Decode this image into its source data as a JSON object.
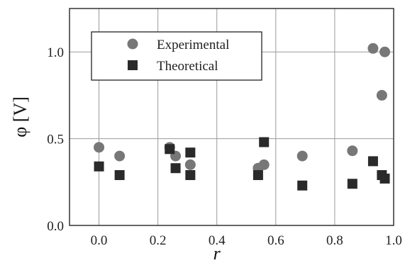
{
  "chart_data": {
    "type": "scatter",
    "xlabel": "r",
    "ylabel": "φ [V]",
    "xlim": [
      -0.1,
      1.0
    ],
    "ylim": [
      0.0,
      1.25
    ],
    "x_ticks": [
      "0.0",
      "0.2",
      "0.4",
      "0.6",
      "0.8",
      "1.0"
    ],
    "y_ticks": [
      "0.0",
      "0.5",
      "1.0"
    ],
    "grid": true,
    "legend_position": "top-left",
    "series": [
      {
        "name": "Experimental",
        "marker": "circle",
        "color": "#777777",
        "points": [
          [
            0.0,
            0.45
          ],
          [
            0.07,
            0.4
          ],
          [
            0.24,
            0.45
          ],
          [
            0.26,
            0.4
          ],
          [
            0.31,
            0.35
          ],
          [
            0.54,
            0.33
          ],
          [
            0.56,
            0.35
          ],
          [
            0.69,
            0.4
          ],
          [
            0.86,
            0.43
          ],
          [
            0.93,
            1.02
          ],
          [
            0.97,
            1.0
          ],
          [
            0.96,
            0.75
          ]
        ]
      },
      {
        "name": "Theoretical",
        "marker": "square",
        "color": "#2a2a2a",
        "points": [
          [
            0.0,
            0.34
          ],
          [
            0.07,
            0.29
          ],
          [
            0.24,
            0.44
          ],
          [
            0.26,
            0.33
          ],
          [
            0.31,
            0.42
          ],
          [
            0.31,
            0.29
          ],
          [
            0.54,
            0.29
          ],
          [
            0.56,
            0.48
          ],
          [
            0.69,
            0.23
          ],
          [
            0.86,
            0.24
          ],
          [
            0.93,
            0.37
          ],
          [
            0.96,
            0.29
          ],
          [
            0.97,
            0.27
          ]
        ]
      }
    ]
  }
}
